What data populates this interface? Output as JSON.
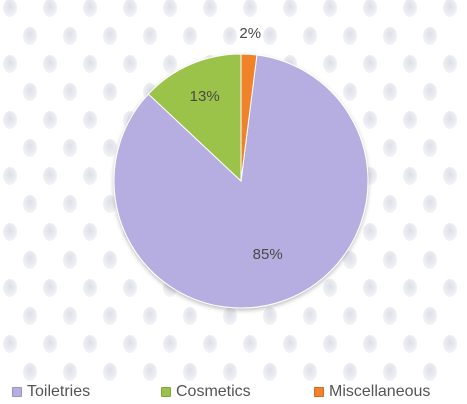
{
  "chart_data": {
    "type": "pie",
    "categories": [
      "Toiletries",
      "Cosmetics",
      "Miscellaneous"
    ],
    "values": [
      85,
      13,
      2
    ],
    "data_labels": [
      "85%",
      "13%",
      "2%"
    ],
    "colors": [
      "#b6aee0",
      "#9bc24a",
      "#f0822c"
    ],
    "legend_position": "bottom",
    "title": ""
  }
}
